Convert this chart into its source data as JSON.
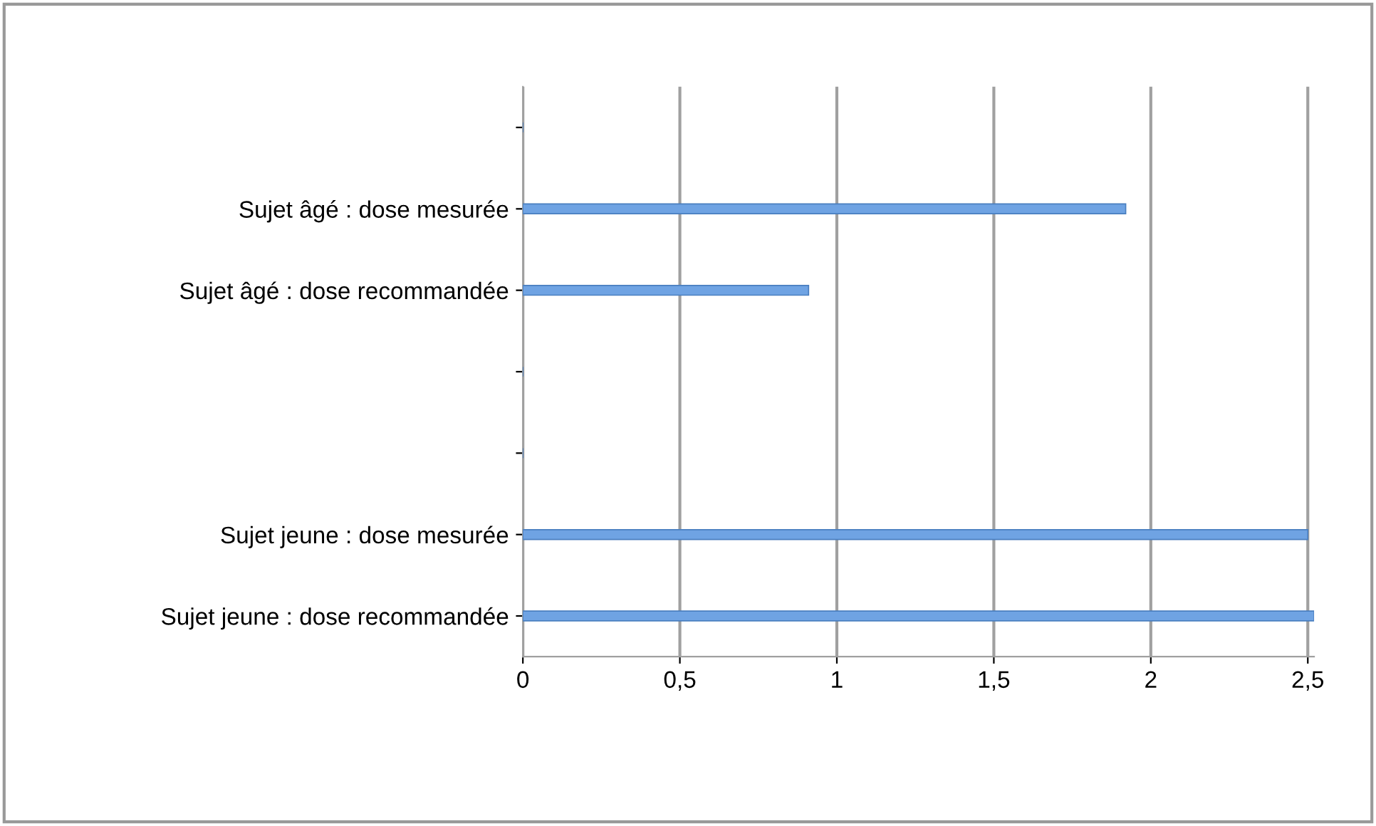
{
  "chart_data": {
    "type": "bar",
    "orientation": "horizontal",
    "categories": [
      null,
      "Sujet âgé : dose mesurée",
      "Sujet âgé : dose recommandée",
      null,
      null,
      "Sujet jeune : dose mesurée",
      "Sujet jeune : dose recommandée"
    ],
    "values": [
      null,
      1.92,
      0.91,
      null,
      null,
      2.5,
      2.52
    ],
    "color": "#6fa3e3",
    "xlim": [
      0,
      2.52
    ],
    "xticks": [
      0,
      {
        "value": 0.5,
        "label": "0,5"
      },
      1,
      {
        "value": 1.5,
        "label": "1,5"
      },
      2,
      {
        "value": 2.5,
        "label": "2,5"
      }
    ],
    "grid": "x"
  }
}
